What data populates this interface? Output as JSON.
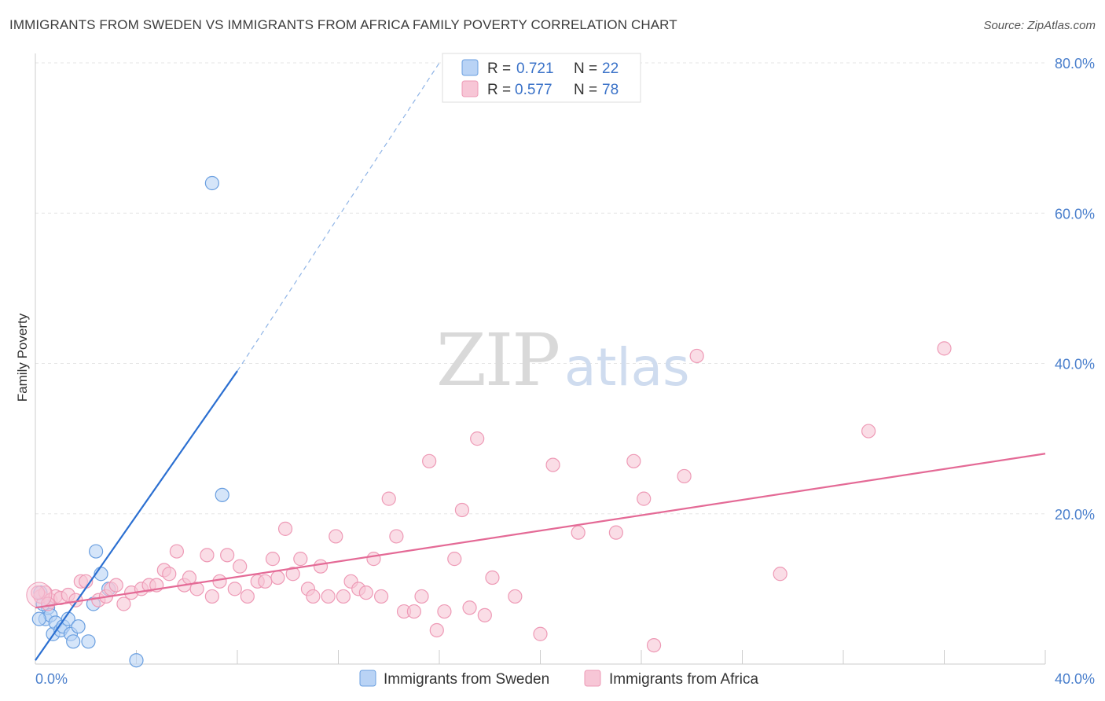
{
  "title": "IMMIGRANTS FROM SWEDEN VS IMMIGRANTS FROM AFRICA FAMILY POVERTY CORRELATION CHART",
  "source": "Source: ZipAtlas.com",
  "watermark": {
    "zip": "ZIP",
    "atlas": "atlas"
  },
  "legend": {
    "sweden": {
      "r_label": "R =",
      "r_value": "0.721",
      "n_label": "N =",
      "n_value": "22"
    },
    "africa": {
      "r_label": "R =",
      "r_value": "0.577",
      "n_label": "N =",
      "n_value": "78"
    }
  },
  "chart_data": {
    "type": "scatter",
    "ylabel": "Family Poverty",
    "xlim": [
      0,
      40
    ],
    "ylim": [
      0,
      80
    ],
    "x_ticks": [
      {
        "value": 0,
        "label": "0.0%"
      },
      {
        "value": 40,
        "label": "40.0%"
      }
    ],
    "y_ticks": [
      {
        "value": 20,
        "label": "20.0%"
      },
      {
        "value": 40,
        "label": "40.0%"
      },
      {
        "value": 60,
        "label": "60.0%"
      },
      {
        "value": 80,
        "label": "80.0%"
      }
    ],
    "grid": true,
    "legend_position": "top-center",
    "series": [
      {
        "name": "Immigrants from Sweden",
        "color": "#6a9fe0",
        "fill": "#b9d3f5",
        "trend_color": "#2b6fd1",
        "trend": {
          "x0": 0,
          "y0": 0.5,
          "x1": 8.0,
          "y1": 39.0,
          "dash_x1": 16.0,
          "dash_y1": 80.0
        },
        "points": [
          {
            "x": 0.2,
            "y": 9.5
          },
          {
            "x": 0.4,
            "y": 6.0
          },
          {
            "x": 0.5,
            "y": 7.5
          },
          {
            "x": 0.6,
            "y": 6.5
          },
          {
            "x": 0.7,
            "y": 4.0
          },
          {
            "x": 0.8,
            "y": 5.5
          },
          {
            "x": 1.0,
            "y": 4.5
          },
          {
            "x": 1.1,
            "y": 5.0
          },
          {
            "x": 1.3,
            "y": 6.0
          },
          {
            "x": 1.4,
            "y": 4.0
          },
          {
            "x": 1.5,
            "y": 3.0
          },
          {
            "x": 1.7,
            "y": 5.0
          },
          {
            "x": 2.1,
            "y": 3.0
          },
          {
            "x": 2.3,
            "y": 8.0
          },
          {
            "x": 2.4,
            "y": 15.0
          },
          {
            "x": 2.6,
            "y": 12.0
          },
          {
            "x": 2.9,
            "y": 10.0
          },
          {
            "x": 4.0,
            "y": 0.5
          },
          {
            "x": 7.0,
            "y": 64.0
          },
          {
            "x": 7.4,
            "y": 22.5
          },
          {
            "x": 0.15,
            "y": 6.0
          },
          {
            "x": 0.3,
            "y": 8.0
          }
        ]
      },
      {
        "name": "Immigrants from Africa",
        "color": "#ee9ab6",
        "fill": "#f7c6d6",
        "trend_color": "#e46a96",
        "trend": {
          "x0": 0,
          "y0": 7.5,
          "x1": 40,
          "y1": 28.0
        },
        "points": [
          {
            "x": 0.2,
            "y": 9.0
          },
          {
            "x": 0.4,
            "y": 9.5
          },
          {
            "x": 0.6,
            "y": 8.5
          },
          {
            "x": 0.8,
            "y": 9.0
          },
          {
            "x": 1.0,
            "y": 8.8
          },
          {
            "x": 1.3,
            "y": 9.2
          },
          {
            "x": 1.6,
            "y": 8.5
          },
          {
            "x": 1.8,
            "y": 11.0
          },
          {
            "x": 2.0,
            "y": 11.0
          },
          {
            "x": 2.5,
            "y": 8.5
          },
          {
            "x": 2.8,
            "y": 9.0
          },
          {
            "x": 3.0,
            "y": 10.0
          },
          {
            "x": 3.2,
            "y": 10.5
          },
          {
            "x": 3.5,
            "y": 8.0
          },
          {
            "x": 3.8,
            "y": 9.5
          },
          {
            "x": 4.2,
            "y": 10.0
          },
          {
            "x": 4.5,
            "y": 10.5
          },
          {
            "x": 4.8,
            "y": 10.5
          },
          {
            "x": 5.1,
            "y": 12.5
          },
          {
            "x": 5.3,
            "y": 12.0
          },
          {
            "x": 5.6,
            "y": 15.0
          },
          {
            "x": 5.9,
            "y": 10.5
          },
          {
            "x": 6.1,
            "y": 11.5
          },
          {
            "x": 6.4,
            "y": 10.0
          },
          {
            "x": 6.8,
            "y": 14.5
          },
          {
            "x": 7.0,
            "y": 9.0
          },
          {
            "x": 7.3,
            "y": 11.0
          },
          {
            "x": 7.6,
            "y": 14.5
          },
          {
            "x": 7.9,
            "y": 10.0
          },
          {
            "x": 8.1,
            "y": 13.0
          },
          {
            "x": 8.4,
            "y": 9.0
          },
          {
            "x": 8.8,
            "y": 11.0
          },
          {
            "x": 9.1,
            "y": 11.0
          },
          {
            "x": 9.4,
            "y": 14.0
          },
          {
            "x": 9.6,
            "y": 11.5
          },
          {
            "x": 9.9,
            "y": 18.0
          },
          {
            "x": 10.2,
            "y": 12.0
          },
          {
            "x": 10.5,
            "y": 14.0
          },
          {
            "x": 10.8,
            "y": 10.0
          },
          {
            "x": 11.0,
            "y": 9.0
          },
          {
            "x": 11.3,
            "y": 13.0
          },
          {
            "x": 11.6,
            "y": 9.0
          },
          {
            "x": 11.9,
            "y": 17.0
          },
          {
            "x": 12.2,
            "y": 9.0
          },
          {
            "x": 12.5,
            "y": 11.0
          },
          {
            "x": 12.8,
            "y": 10.0
          },
          {
            "x": 13.1,
            "y": 9.5
          },
          {
            "x": 13.4,
            "y": 14.0
          },
          {
            "x": 13.7,
            "y": 9.0
          },
          {
            "x": 14.0,
            "y": 22.0
          },
          {
            "x": 14.3,
            "y": 17.0
          },
          {
            "x": 14.6,
            "y": 7.0
          },
          {
            "x": 15.0,
            "y": 7.0
          },
          {
            "x": 15.3,
            "y": 9.0
          },
          {
            "x": 15.6,
            "y": 27.0
          },
          {
            "x": 15.9,
            "y": 4.5
          },
          {
            "x": 16.2,
            "y": 7.0
          },
          {
            "x": 16.6,
            "y": 14.0
          },
          {
            "x": 16.9,
            "y": 20.5
          },
          {
            "x": 17.2,
            "y": 7.5
          },
          {
            "x": 17.5,
            "y": 30.0
          },
          {
            "x": 17.8,
            "y": 6.5
          },
          {
            "x": 18.1,
            "y": 11.5
          },
          {
            "x": 19.0,
            "y": 9.0
          },
          {
            "x": 20.0,
            "y": 4.0
          },
          {
            "x": 20.5,
            "y": 26.5
          },
          {
            "x": 21.5,
            "y": 17.5
          },
          {
            "x": 23.0,
            "y": 17.5
          },
          {
            "x": 23.7,
            "y": 27.0
          },
          {
            "x": 24.1,
            "y": 22.0
          },
          {
            "x": 24.5,
            "y": 2.5
          },
          {
            "x": 25.7,
            "y": 25.0
          },
          {
            "x": 26.2,
            "y": 41.0
          },
          {
            "x": 29.5,
            "y": 12.0
          },
          {
            "x": 33.0,
            "y": 31.0
          },
          {
            "x": 36.0,
            "y": 42.0
          },
          {
            "x": 0.1,
            "y": 9.5
          },
          {
            "x": 0.5,
            "y": 8.0
          }
        ]
      }
    ]
  }
}
